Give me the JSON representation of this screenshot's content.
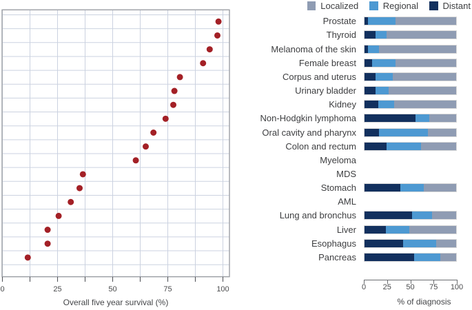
{
  "figure": {
    "legend": [
      {
        "label": "Localized",
        "color": "#8f9cb3"
      },
      {
        "label": "Regional",
        "color": "#4d99d2"
      },
      {
        "label": "Distant",
        "color": "#12305e"
      }
    ],
    "left_axis_label": "Overall five year survival (%)",
    "right_axis_label": "% of diagnosis"
  },
  "chart_data": [
    {
      "type": "scatter",
      "xlabel": "Overall five year survival (%)",
      "xlim": [
        0,
        100
      ],
      "xticks": [
        0,
        25,
        50,
        75,
        100
      ],
      "grid": true,
      "point_color": "#a32026",
      "grid_color": "#cbd2e0",
      "categories": [
        "Prostate",
        "Thyroid",
        "Melanoma of the skin",
        "Female breast",
        "Corpus and uterus",
        "Urinary bladder",
        "Kidney",
        "Non-Hodgkin lymphoma",
        "Oral cavity and pharynx",
        "Colon and rectum",
        "Myeloma",
        "MDS",
        "Stomach",
        "AML",
        "Lung and bronchus",
        "Liver",
        "Esophagus",
        "Pancreas"
      ],
      "values": [
        98,
        97.5,
        94,
        91,
        80.5,
        78,
        77.5,
        74,
        68.5,
        65,
        60.5,
        36.5,
        35,
        31,
        25.5,
        20.5,
        20.5,
        11.5
      ]
    },
    {
      "type": "bar",
      "stacked": true,
      "orientation": "horizontal",
      "xlabel": "% of diagnosis",
      "xlim": [
        0,
        100
      ],
      "xticks": [
        0,
        25,
        50,
        75,
        100
      ],
      "legend_position": "top",
      "categories": [
        "Prostate",
        "Thyroid",
        "Melanoma of the skin",
        "Female breast",
        "Corpus and uterus",
        "Urinary bladder",
        "Kidney",
        "Non-Hodgkin lymphoma",
        "Oral cavity and pharynx",
        "Colon and rectum",
        "Myeloma",
        "MDS",
        "Stomach",
        "AML",
        "Lung and bronchus",
        "Liver",
        "Esophagus",
        "Pancreas"
      ],
      "series": [
        {
          "name": "Distant",
          "color": "#12305e",
          "values": [
            4,
            12,
            4,
            8,
            12,
            12,
            15,
            56,
            16,
            24,
            null,
            null,
            39,
            null,
            52,
            23,
            42,
            54
          ]
        },
        {
          "name": "Regional",
          "color": "#4d99d2",
          "values": [
            30,
            12,
            12,
            26,
            19,
            14,
            17,
            15,
            53,
            38,
            null,
            null,
            26,
            null,
            22,
            26,
            36,
            29
          ]
        },
        {
          "name": "Localized",
          "color": "#8f9cb3",
          "values": [
            66,
            76,
            84,
            66,
            69,
            74,
            68,
            29,
            31,
            38,
            null,
            null,
            35,
            null,
            26,
            51,
            22,
            17
          ]
        }
      ]
    }
  ]
}
